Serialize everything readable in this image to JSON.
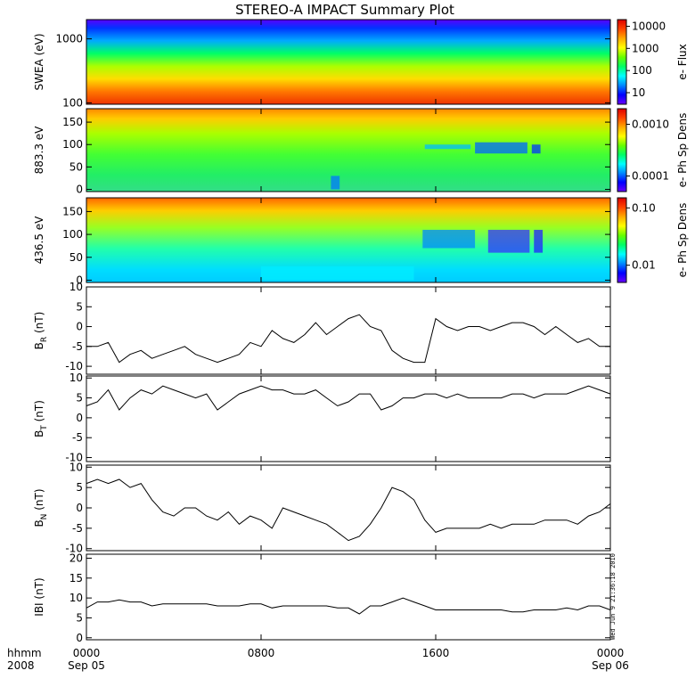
{
  "title": "STEREO-A IMPACT Summary Plot",
  "stamp": "Wed Jun 9 21:36:18 2010",
  "colors": {
    "line": "#000000",
    "colorbar": [
      "#6a00ff",
      "#0000ff",
      "#0088ff",
      "#00ffff",
      "#00ff66",
      "#66ff00",
      "#ffff00",
      "#ffaa00",
      "#ff4400",
      "#dd0000"
    ]
  },
  "time_axis": {
    "row_label_1": "hhmm",
    "row_label_2": "2008",
    "ticks": [
      {
        "hours": 0,
        "label": "0000",
        "sublabel": "Sep 05"
      },
      {
        "hours": 8,
        "label": "0800",
        "sublabel": ""
      },
      {
        "hours": 16,
        "label": "1600",
        "sublabel": ""
      },
      {
        "hours": 24,
        "label": "0000",
        "sublabel": "Sep 06"
      }
    ]
  },
  "chart_data": [
    {
      "type": "heatmap",
      "ylabel": "SWEA (eV)",
      "yscale": "log",
      "ylim": [
        95,
        2000
      ],
      "yticks": [
        {
          "v": 100,
          "label": "100"
        },
        {
          "v": 1000,
          "label": "1000"
        }
      ],
      "colorbar": {
        "label": "e- Flux",
        "scale": "log",
        "range": [
          3,
          20000
        ],
        "ticks": [
          {
            "v": 10,
            "label": "10"
          },
          {
            "v": 100,
            "label": "100"
          },
          {
            "v": 1000,
            "label": "1000"
          },
          {
            "v": 10000,
            "label": "10000"
          }
        ]
      }
    },
    {
      "type": "heatmap",
      "ylabel": "883.3 eV",
      "yscale": "linear",
      "ylim": [
        -5,
        180
      ],
      "yticks": [
        {
          "v": 0,
          "label": "0"
        },
        {
          "v": 50,
          "label": "50"
        },
        {
          "v": 100,
          "label": "100"
        },
        {
          "v": 150,
          "label": "150"
        }
      ],
      "colorbar": {
        "label": "e- Ph Sp Dens",
        "scale": "log",
        "range": [
          5e-05,
          0.002
        ],
        "ticks": [
          {
            "v": 0.0001,
            "label": "0.0001"
          },
          {
            "v": 0.001,
            "label": "0.0010"
          }
        ]
      }
    },
    {
      "type": "heatmap",
      "ylabel": "436.5 eV",
      "yscale": "linear",
      "ylim": [
        -5,
        180
      ],
      "yticks": [
        {
          "v": 0,
          "label": "0"
        },
        {
          "v": 50,
          "label": "50"
        },
        {
          "v": 100,
          "label": "100"
        },
        {
          "v": 150,
          "label": "150"
        }
      ],
      "colorbar": {
        "label": "e- Ph Sp Dens",
        "scale": "log",
        "range": [
          0.005,
          0.15
        ],
        "ticks": [
          {
            "v": 0.01,
            "label": "0.01"
          },
          {
            "v": 0.1,
            "label": "0.10"
          }
        ]
      }
    },
    {
      "type": "line",
      "ylabel": "B",
      "ylabel_sub": "R",
      "ylabel_unit": "(nT)",
      "ylim": [
        -12,
        10
      ],
      "yticks": [
        {
          "v": -10,
          "label": "-10"
        },
        {
          "v": -5,
          "label": "-5"
        },
        {
          "v": 0,
          "label": "0"
        },
        {
          "v": 5,
          "label": "5"
        },
        {
          "v": 10,
          "label": "10"
        }
      ],
      "x": [
        0,
        0.5,
        1,
        1.5,
        2,
        2.5,
        3,
        3.5,
        4,
        4.5,
        5,
        5.5,
        6,
        6.5,
        7,
        7.5,
        8,
        8.5,
        9,
        9.5,
        10,
        10.5,
        11,
        11.5,
        12,
        12.5,
        13,
        13.5,
        14,
        14.5,
        15,
        15.5,
        16,
        16.5,
        17,
        17.5,
        18,
        18.5,
        19,
        19.5,
        20,
        20.5,
        21,
        21.5,
        22,
        22.5,
        23,
        23.5,
        24
      ],
      "y": [
        -5,
        -5,
        -4,
        -9,
        -7,
        -6,
        -8,
        -7,
        -6,
        -5,
        -7,
        -8,
        -9,
        -8,
        -7,
        -4,
        -5,
        -1,
        -3,
        -4,
        -2,
        1,
        -2,
        0,
        2,
        3,
        0,
        -1,
        -6,
        -8,
        -9,
        -9,
        2,
        0,
        -1,
        0,
        0,
        -1,
        0,
        1,
        1,
        0,
        -2,
        0,
        -2,
        -4,
        -3,
        -5,
        -5
      ]
    },
    {
      "type": "line",
      "ylabel": "B",
      "ylabel_sub": "T",
      "ylabel_unit": "(nT)",
      "ylim": [
        -11,
        10.5
      ],
      "yticks": [
        {
          "v": -10,
          "label": "-10"
        },
        {
          "v": -5,
          "label": "-5"
        },
        {
          "v": 0,
          "label": "0"
        },
        {
          "v": 5,
          "label": "5"
        },
        {
          "v": 10,
          "label": "10"
        }
      ],
      "x": [
        0,
        0.5,
        1,
        1.5,
        2,
        2.5,
        3,
        3.5,
        4,
        4.5,
        5,
        5.5,
        6,
        6.5,
        7,
        7.5,
        8,
        8.5,
        9,
        9.5,
        10,
        10.5,
        11,
        11.5,
        12,
        12.5,
        13,
        13.5,
        14,
        14.5,
        15,
        15.5,
        16,
        16.5,
        17,
        17.5,
        18,
        18.5,
        19,
        19.5,
        20,
        20.5,
        21,
        21.5,
        22,
        22.5,
        23,
        23.5,
        24
      ],
      "y": [
        3,
        4,
        7,
        2,
        5,
        7,
        6,
        8,
        7,
        6,
        5,
        6,
        2,
        4,
        6,
        7,
        8,
        7,
        7,
        6,
        6,
        7,
        5,
        3,
        4,
        6,
        6,
        2,
        3,
        5,
        5,
        6,
        6,
        5,
        6,
        5,
        5,
        5,
        5,
        6,
        6,
        5,
        6,
        6,
        6,
        7,
        8,
        7,
        6
      ]
    },
    {
      "type": "line",
      "ylabel": "B",
      "ylabel_sub": "N",
      "ylabel_unit": "(nT)",
      "ylim": [
        -10.5,
        10.5
      ],
      "yticks": [
        {
          "v": -10,
          "label": "-10"
        },
        {
          "v": -5,
          "label": "-5"
        },
        {
          "v": 0,
          "label": "0"
        },
        {
          "v": 5,
          "label": "5"
        },
        {
          "v": 10,
          "label": "10"
        }
      ],
      "x": [
        0,
        0.5,
        1,
        1.5,
        2,
        2.5,
        3,
        3.5,
        4,
        4.5,
        5,
        5.5,
        6,
        6.5,
        7,
        7.5,
        8,
        8.5,
        9,
        9.5,
        10,
        10.5,
        11,
        11.5,
        12,
        12.5,
        13,
        13.5,
        14,
        14.5,
        15,
        15.5,
        16,
        16.5,
        17,
        17.5,
        18,
        18.5,
        19,
        19.5,
        20,
        20.5,
        21,
        21.5,
        22,
        22.5,
        23,
        23.5,
        24
      ],
      "y": [
        6,
        7,
        6,
        7,
        5,
        6,
        2,
        -1,
        -2,
        0,
        0,
        -2,
        -3,
        -1,
        -4,
        -2,
        -3,
        -5,
        0,
        -1,
        -2,
        -3,
        -4,
        -6,
        -8,
        -7,
        -4,
        0,
        5,
        4,
        2,
        -3,
        -6,
        -5,
        -5,
        -5,
        -5,
        -4,
        -5,
        -4,
        -4,
        -4,
        -3,
        -3,
        -3,
        -4,
        -2,
        -1,
        1
      ]
    },
    {
      "type": "line",
      "ylabel": "IBI",
      "ylabel_sub": "",
      "ylabel_unit": "(nT)",
      "ylim": [
        -0.5,
        21
      ],
      "yticks": [
        {
          "v": 0,
          "label": "0"
        },
        {
          "v": 5,
          "label": "5"
        },
        {
          "v": 10,
          "label": "10"
        },
        {
          "v": 15,
          "label": "15"
        },
        {
          "v": 20,
          "label": "20"
        }
      ],
      "x": [
        0,
        0.5,
        1,
        1.5,
        2,
        2.5,
        3,
        3.5,
        4,
        4.5,
        5,
        5.5,
        6,
        6.5,
        7,
        7.5,
        8,
        8.5,
        9,
        9.5,
        10,
        10.5,
        11,
        11.5,
        12,
        12.5,
        13,
        13.5,
        14,
        14.5,
        15,
        15.5,
        16,
        16.5,
        17,
        17.5,
        18,
        18.5,
        19,
        19.5,
        20,
        20.5,
        21,
        21.5,
        22,
        22.5,
        23,
        23.5,
        24
      ],
      "y": [
        7.5,
        9,
        9,
        9.5,
        9,
        9,
        8,
        8.5,
        8.5,
        8.5,
        8.5,
        8.5,
        8,
        8,
        8,
        8.5,
        8.5,
        7.5,
        8,
        8,
        8,
        8,
        8,
        7.5,
        7.5,
        6,
        8,
        8,
        9,
        10,
        9,
        8,
        7,
        7,
        7,
        7,
        7,
        7,
        7,
        6.5,
        6.5,
        7,
        7,
        7,
        7.5,
        7,
        8,
        8,
        7
      ]
    }
  ]
}
